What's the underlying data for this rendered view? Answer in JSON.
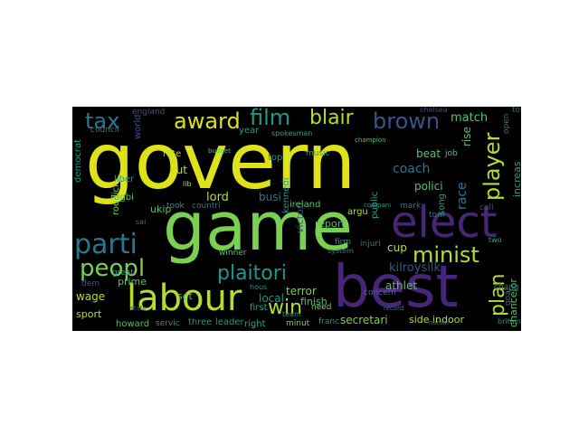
{
  "wordcloud": {
    "words": {
      "govern": "govern",
      "game": "game",
      "best": "best",
      "elect": "elect",
      "labour": "labour",
      "parti": "parti",
      "award": "award",
      "film": "film",
      "blair": "blair",
      "brown": "brown",
      "tax": "tax",
      "peopl": "peopl",
      "minist": "minist",
      "player": "player",
      "plaitori": "plaitori",
      "win": "win",
      "plan": "plan",
      "coach": "coach",
      "match": "match",
      "race": "race",
      "kilroysilk": "kilroysilk",
      "secretari": "secretari",
      "cup": "cup",
      "lord": "lord",
      "busi": "busi",
      "rise": "rise",
      "beat": "beat",
      "polici": "polici",
      "athlet": "athlet",
      "song": "song",
      "terror": "terror",
      "local": "local",
      "finish": "finish",
      "side": "side",
      "indoor": "indoor",
      "chancelor": "chancelor",
      "increas": "increas",
      "wage": "wage",
      "prime": "prime",
      "set": "set",
      "sport": "sport",
      "howard": "howard",
      "servic": "servic",
      "three": "three",
      "leader": "leader",
      "right": "right",
      "first": "first",
      "minut": "minut",
      "need": "need",
      "franc": "franc",
      "public": "public",
      "victori": "victori",
      "kennedi": "kennedi",
      "report": "report",
      "argu": "argu",
      "ireland": "ireland",
      "firm": "firm",
      "roddick": "roddick",
      "rate": "rate",
      "cut": "cut",
      "took": "took",
      "countri": "countri",
      "ukip": "ukip",
      "rugbi": "rugbi",
      "liber": "liber",
      "world": "world",
      "england": "england",
      "council": "council",
      "democrat": "democrat",
      "top": "top",
      "year": "year",
      "music": "music",
      "job": "job",
      "injuri": "injuri",
      "concern": "concern",
      "dem": "dem",
      "great": "great",
      "open": "open",
      "told": "told",
      "chang": "chang",
      "goal": "goal",
      "call": "call",
      "toni": "toni",
      "mark": "mark",
      "team": "team",
      "hous": "hous",
      "winner": "winner",
      "spokesman": "spokesman",
      "system": "system",
      "chelsea": "chelsea",
      "britain": "britain",
      "state": "state",
      "budget": "budget",
      "champion": "champion",
      "lib": "lib",
      "sai": "sai",
      "compani": "compani",
      "record": "record",
      "nomin": "nomin",
      "two": "two"
    }
  },
  "colors": {
    "yellow": "#dde318",
    "yellowgreen": "#b5de2b",
    "green": "#7ad151",
    "mint": "#52c569",
    "teal": "#22a884",
    "cyan": "#1f988b",
    "blue": "#2a788e",
    "slate": "#3b528b",
    "indigo": "#414487",
    "purple": "#482677",
    "violet": "#440154"
  }
}
